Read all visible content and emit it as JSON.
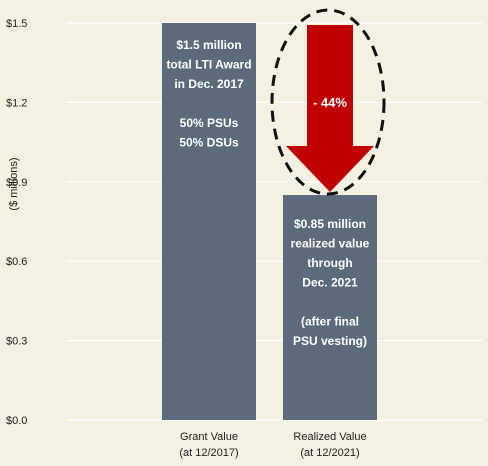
{
  "chart_data": {
    "type": "bar",
    "ylabel": "($ millions)",
    "ylim": [
      0,
      1.5
    ],
    "yticks": [
      {
        "value": 0.0,
        "label": "$0.0"
      },
      {
        "value": 0.3,
        "label": "$0.3"
      },
      {
        "value": 0.6,
        "label": "$0.6"
      },
      {
        "value": 0.9,
        "label": "$0.9"
      },
      {
        "value": 1.2,
        "label": "$1.2"
      },
      {
        "value": 1.5,
        "label": "$1.5"
      }
    ],
    "grid": true,
    "categories": [
      {
        "line1": "Grant Value",
        "line2": "(at 12/2017)"
      },
      {
        "line1": "Realized Value",
        "line2": "(at 12/2021)"
      }
    ],
    "values": [
      1.5,
      0.85
    ],
    "bar_labels": [
      [
        "$1.5 million",
        "total LTI Award",
        "in Dec. 2017",
        "",
        "50% PSUs",
        "50% DSUs"
      ],
      [
        "$0.85 million",
        "realized value",
        "through",
        "Dec. 2021",
        "",
        "(after final",
        "PSU vesting)"
      ]
    ],
    "annotation": {
      "text": "- 44%",
      "from": 1.5,
      "to": 0.85
    },
    "colors": {
      "background": "#f4f0e2",
      "bar": "#5c6b7b",
      "arrow": "#c00000",
      "grid": "#ffffff",
      "text": "#222222",
      "bar_text": "#ffffff"
    }
  }
}
